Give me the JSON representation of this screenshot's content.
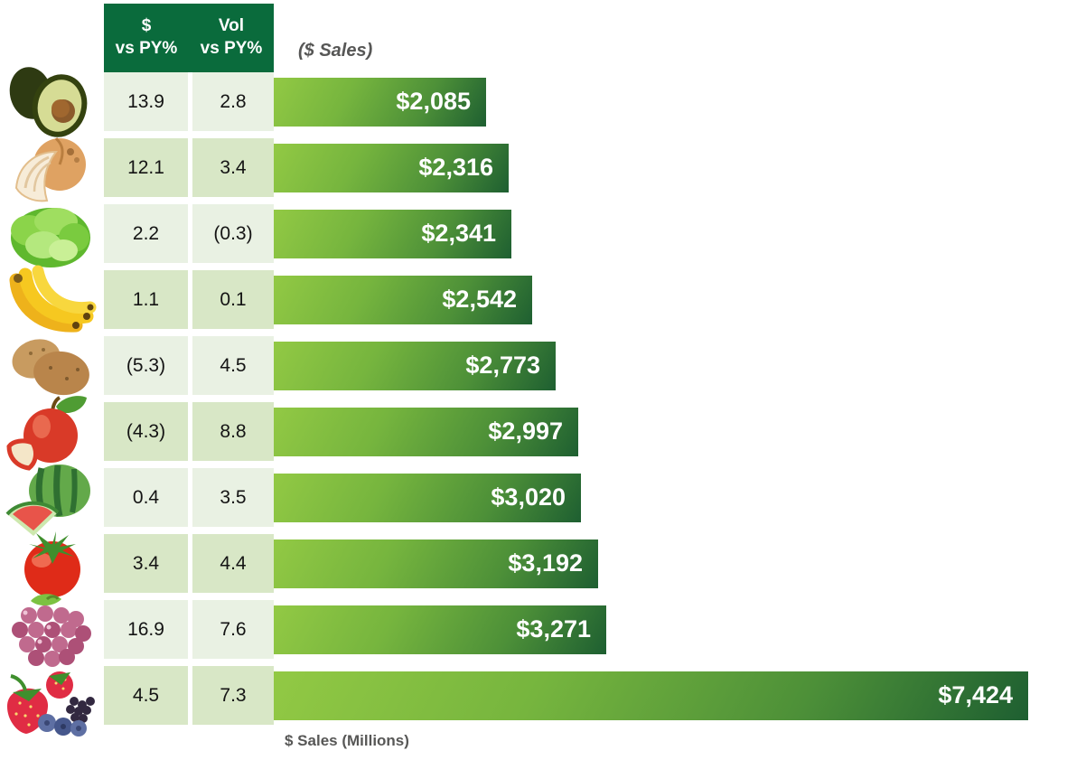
{
  "title": "($ Sales)",
  "axis_label": "$ Sales (Millions)",
  "table_header": {
    "col1": {
      "line1": "$",
      "line2": "vs PY%"
    },
    "col2": {
      "line1": "Vol",
      "line2": "vs PY%"
    }
  },
  "colors": {
    "header_green": "#0A6B3C",
    "row_light": "#E9F1E3",
    "row_medium": "#D8E7C6",
    "bar_gradient_light": "#92C944",
    "bar_gradient_dark": "#1E5F31",
    "label_gray": "#575756",
    "bar_value_text": "#FFFFFF"
  },
  "rows": [
    {
      "item": "avocado",
      "dollar_vs_py": "13.9",
      "vol_vs_py": "2.8",
      "sales_label": "$2,085",
      "sales_value": 2085
    },
    {
      "item": "onion",
      "dollar_vs_py": "12.1",
      "vol_vs_py": "3.4",
      "sales_label": "$2,316",
      "sales_value": 2316
    },
    {
      "item": "lettuce",
      "dollar_vs_py": "2.2",
      "vol_vs_py": "(0.3)",
      "sales_label": "$2,341",
      "sales_value": 2341
    },
    {
      "item": "banana",
      "dollar_vs_py": "1.1",
      "vol_vs_py": "0.1",
      "sales_label": "$2,542",
      "sales_value": 2542
    },
    {
      "item": "potato",
      "dollar_vs_py": "(5.3)",
      "vol_vs_py": "4.5",
      "sales_label": "$2,773",
      "sales_value": 2773
    },
    {
      "item": "apple",
      "dollar_vs_py": "(4.3)",
      "vol_vs_py": "8.8",
      "sales_label": "$2,997",
      "sales_value": 2997
    },
    {
      "item": "watermelon",
      "dollar_vs_py": "0.4",
      "vol_vs_py": "3.5",
      "sales_label": "$3,020",
      "sales_value": 3020
    },
    {
      "item": "tomato",
      "dollar_vs_py": "3.4",
      "vol_vs_py": "4.4",
      "sales_label": "$3,192",
      "sales_value": 3192
    },
    {
      "item": "grapes",
      "dollar_vs_py": "16.9",
      "vol_vs_py": "7.6",
      "sales_label": "$3,271",
      "sales_value": 3271
    },
    {
      "item": "berries",
      "dollar_vs_py": "4.5",
      "vol_vs_py": "7.3",
      "sales_label": "$7,424",
      "sales_value": 7424
    }
  ],
  "chart_data": {
    "type": "bar",
    "orientation": "horizontal",
    "title": "($ Sales)",
    "xlabel": "$ Sales (Millions)",
    "categories": [
      "avocado",
      "onion",
      "lettuce",
      "banana",
      "potato",
      "apple",
      "watermelon",
      "tomato",
      "grapes",
      "berries"
    ],
    "series": [
      {
        "name": "$ vs PY%",
        "values": [
          13.9,
          12.1,
          2.2,
          1.1,
          -5.3,
          -4.3,
          0.4,
          3.4,
          16.9,
          4.5
        ]
      },
      {
        "name": "Vol vs PY%",
        "values": [
          2.8,
          3.4,
          -0.3,
          0.1,
          4.5,
          8.8,
          3.5,
          4.4,
          7.6,
          7.3
        ]
      },
      {
        "name": "$ Sales (Millions)",
        "values": [
          2085,
          2316,
          2341,
          2542,
          2773,
          2997,
          3020,
          3192,
          3271,
          7424
        ]
      }
    ],
    "data_labels": [
      "$2,085",
      "$2,316",
      "$2,341",
      "$2,542",
      "$2,773",
      "$2,997",
      "$3,020",
      "$3,192",
      "$3,271",
      "$7,424"
    ],
    "xlim": [
      0,
      7424
    ],
    "grid": false,
    "legend": "none"
  }
}
